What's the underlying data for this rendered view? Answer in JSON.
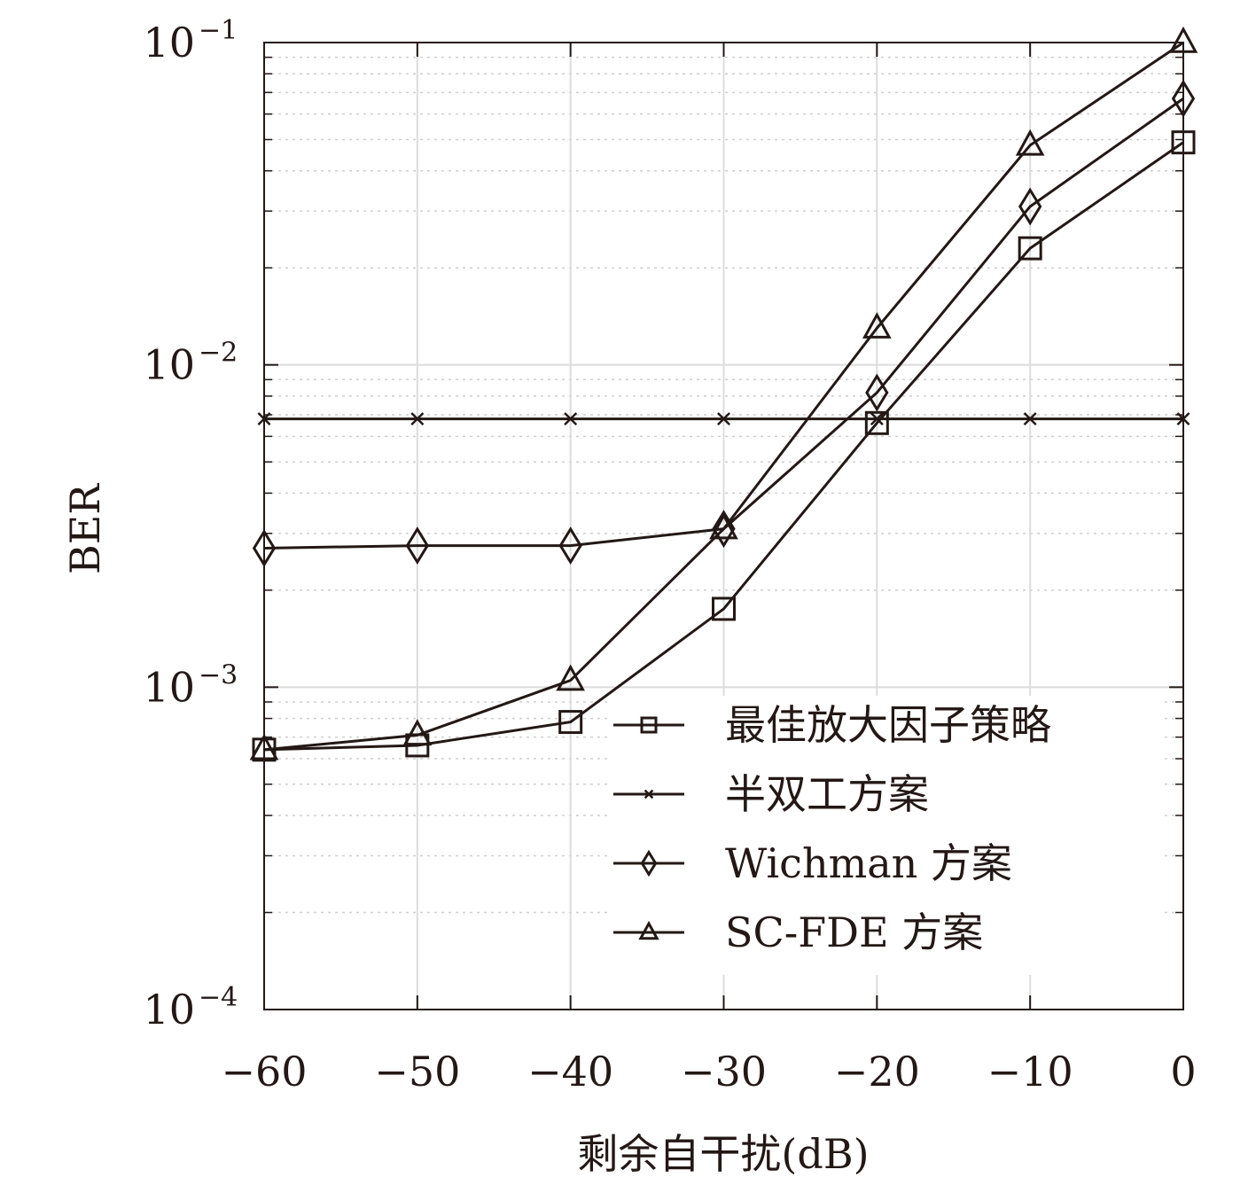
{
  "chart_data": {
    "type": "line",
    "xlabel": "剩余自干扰(dB)",
    "ylabel": "BER",
    "yscale": "log",
    "xlim": [
      -60,
      0
    ],
    "ylim": [
      0.0001,
      0.1
    ],
    "grid": true,
    "legend_position": "bottom-right",
    "x": [
      -60,
      -50,
      -40,
      -30,
      -20,
      -10,
      0
    ],
    "x_tick_labels": [
      "−60",
      "−50",
      "−40",
      "−30",
      "−20",
      "−10",
      "0"
    ],
    "y_ticks": [
      {
        "value": 0.1,
        "base": "10",
        "exp": "−1"
      },
      {
        "value": 0.01,
        "base": "10",
        "exp": "−2"
      },
      {
        "value": 0.001,
        "base": "10",
        "exp": "−3"
      },
      {
        "value": 0.0001,
        "base": "10",
        "exp": "−4"
      }
    ],
    "series": [
      {
        "name": "最佳放大因子策略",
        "marker": "square",
        "values": [
          0.00064,
          0.00066,
          0.00078,
          0.00175,
          0.0066,
          0.023,
          0.049
        ]
      },
      {
        "name": "半双工方案",
        "marker": "x",
        "values": [
          0.0068,
          0.0068,
          0.0068,
          0.0068,
          0.0068,
          0.0068,
          0.0068
        ]
      },
      {
        "name": "Wichman 方案",
        "marker": "diamond",
        "values": [
          0.0027,
          0.00275,
          0.00275,
          0.0031,
          0.0082,
          0.031,
          0.067
        ]
      },
      {
        "name": "SC-FDE 方案",
        "marker": "triangle",
        "values": [
          0.00064,
          0.00071,
          0.00105,
          0.0031,
          0.013,
          0.048,
          0.1
        ]
      }
    ]
  },
  "colors": {
    "line": "#231815",
    "grid_major": "#dcdcdc",
    "grid_minor": "#cfcfcf"
  }
}
